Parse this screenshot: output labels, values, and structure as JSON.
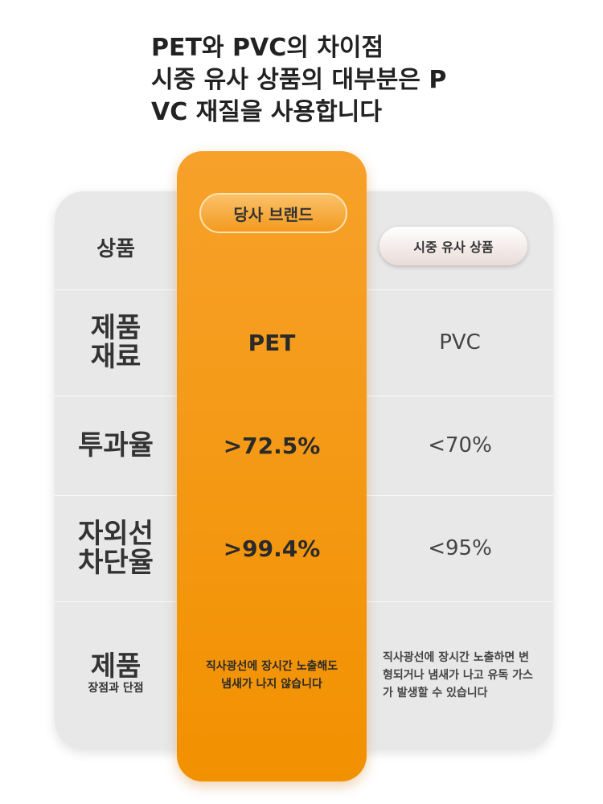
{
  "title": [
    "PET와 PVC의 차이점",
    "시중 유사 상품의 대부분은 P",
    "VC 재질을 사용합니다"
  ],
  "header": {
    "label": "상품",
    "ours": "당사 브랜드",
    "theirs": "시중 유사 상품"
  },
  "rows": [
    {
      "label": [
        "제품",
        "재료"
      ],
      "ours": "PET",
      "theirs": "PVC"
    },
    {
      "label": [
        "투과율"
      ],
      "ours": ">72.5%",
      "theirs": "<70%"
    },
    {
      "label": [
        "자외선",
        "차단율"
      ],
      "ours": ">99.4%",
      "theirs": "<95%"
    },
    {
      "label": [
        "제품",
        "장점과 단점"
      ],
      "ours": "직사광선에 장시간 노출해도 냄새가 나지 않습니다",
      "theirs": "직사광선에 장시간 노출하면 변형되거나 냄새가 나고 유독 가스가 발생할 수 있습니다"
    }
  ]
}
